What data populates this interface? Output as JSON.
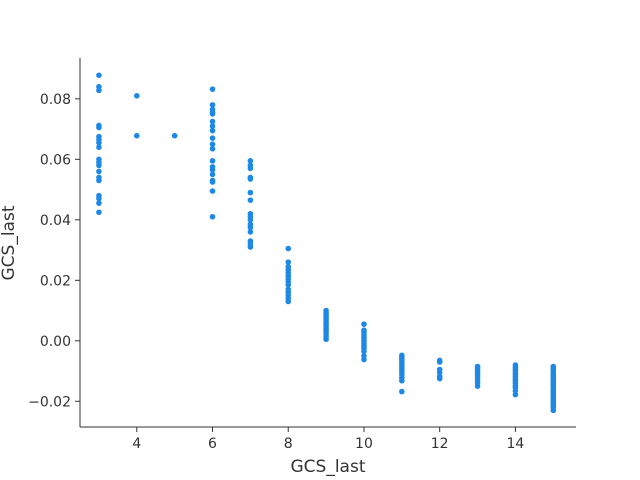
{
  "chart_data": {
    "type": "scatter",
    "xlabel": "GCS_last",
    "ylabel": "GCS_last",
    "xlim": [
      2.5,
      15.6
    ],
    "ylim": [
      -0.0285,
      0.0935
    ],
    "xticks": [
      4,
      6,
      8,
      10,
      12,
      14
    ],
    "xtick_labels": [
      "4",
      "6",
      "8",
      "10",
      "12",
      "14"
    ],
    "yticks": [
      -0.02,
      0.0,
      0.02,
      0.04,
      0.06,
      0.08
    ],
    "ytick_labels": [
      "−0.02",
      "0.00",
      "0.02",
      "0.04",
      "0.06",
      "0.08"
    ],
    "grid": false,
    "point_color": "#1e88e5",
    "axis_color": "#333333",
    "points": [
      [
        3,
        0.0878
      ],
      [
        3,
        0.084
      ],
      [
        3,
        0.0828
      ],
      [
        3,
        0.0712
      ],
      [
        3,
        0.0705
      ],
      [
        3,
        0.0675
      ],
      [
        3,
        0.0665
      ],
      [
        3,
        0.0655
      ],
      [
        3,
        0.064
      ],
      [
        3,
        0.06
      ],
      [
        3,
        0.059
      ],
      [
        3,
        0.058
      ],
      [
        3,
        0.056
      ],
      [
        3,
        0.054
      ],
      [
        3,
        0.053
      ],
      [
        3,
        0.048
      ],
      [
        3,
        0.047
      ],
      [
        3,
        0.0455
      ],
      [
        3,
        0.0425
      ],
      [
        4,
        0.081
      ],
      [
        4,
        0.0678
      ],
      [
        5,
        0.0678
      ],
      [
        6,
        0.0832
      ],
      [
        6,
        0.078
      ],
      [
        6,
        0.0765
      ],
      [
        6,
        0.0755
      ],
      [
        6,
        0.075
      ],
      [
        6,
        0.0725
      ],
      [
        6,
        0.071
      ],
      [
        6,
        0.0695
      ],
      [
        6,
        0.067
      ],
      [
        6,
        0.065
      ],
      [
        6,
        0.0635
      ],
      [
        6,
        0.0595
      ],
      [
        6,
        0.0575
      ],
      [
        6,
        0.0565
      ],
      [
        6,
        0.055
      ],
      [
        6,
        0.053
      ],
      [
        6,
        0.0525
      ],
      [
        6,
        0.0495
      ],
      [
        6,
        0.041
      ],
      [
        7,
        0.0595
      ],
      [
        7,
        0.058
      ],
      [
        7,
        0.057
      ],
      [
        7,
        0.054
      ],
      [
        7,
        0.0535
      ],
      [
        7,
        0.049
      ],
      [
        7,
        0.0465
      ],
      [
        7,
        0.042
      ],
      [
        7,
        0.041
      ],
      [
        7,
        0.04
      ],
      [
        7,
        0.0385
      ],
      [
        7,
        0.0375
      ],
      [
        7,
        0.036
      ],
      [
        7,
        0.033
      ],
      [
        7,
        0.032
      ],
      [
        7,
        0.031
      ],
      [
        8,
        0.0305
      ],
      [
        8,
        0.026
      ],
      [
        8,
        0.0245
      ],
      [
        8,
        0.0235
      ],
      [
        8,
        0.0225
      ],
      [
        8,
        0.0215
      ],
      [
        8,
        0.0205
      ],
      [
        8,
        0.0195
      ],
      [
        8,
        0.0185
      ],
      [
        8,
        0.017
      ],
      [
        8,
        0.016
      ],
      [
        8,
        0.015
      ],
      [
        8,
        0.014
      ],
      [
        8,
        0.013
      ],
      [
        9,
        0.01
      ],
      [
        9,
        0.0092
      ],
      [
        9,
        0.0085
      ],
      [
        9,
        0.0078
      ],
      [
        9,
        0.007
      ],
      [
        9,
        0.0062
      ],
      [
        9,
        0.0055
      ],
      [
        9,
        0.0048
      ],
      [
        9,
        0.004
      ],
      [
        9,
        0.0032
      ],
      [
        9,
        0.0024
      ],
      [
        9,
        0.0015
      ],
      [
        9,
        0.0005
      ],
      [
        10,
        0.0055
      ],
      [
        10,
        0.0035
      ],
      [
        10,
        0.0028
      ],
      [
        10,
        0.002
      ],
      [
        10,
        0.0012
      ],
      [
        10,
        0.0005
      ],
      [
        10,
        -0.0002
      ],
      [
        10,
        -0.001
      ],
      [
        10,
        -0.0018
      ],
      [
        10,
        -0.0025
      ],
      [
        10,
        -0.0035
      ],
      [
        10,
        -0.005
      ],
      [
        10,
        -0.0062
      ],
      [
        11,
        -0.0048
      ],
      [
        11,
        -0.0055
      ],
      [
        11,
        -0.0062
      ],
      [
        11,
        -0.007
      ],
      [
        11,
        -0.0078
      ],
      [
        11,
        -0.0086
      ],
      [
        11,
        -0.0094
      ],
      [
        11,
        -0.0102
      ],
      [
        11,
        -0.0112
      ],
      [
        11,
        -0.0122
      ],
      [
        11,
        -0.0132
      ],
      [
        11,
        -0.0168
      ],
      [
        12,
        -0.0065
      ],
      [
        12,
        -0.007
      ],
      [
        12,
        -0.0095
      ],
      [
        12,
        -0.0105
      ],
      [
        12,
        -0.0118
      ],
      [
        12,
        -0.0125
      ],
      [
        13,
        -0.0085
      ],
      [
        13,
        -0.009
      ],
      [
        13,
        -0.0098
      ],
      [
        13,
        -0.0105
      ],
      [
        13,
        -0.0112
      ],
      [
        13,
        -0.012
      ],
      [
        13,
        -0.013
      ],
      [
        13,
        -0.014
      ],
      [
        13,
        -0.015
      ],
      [
        14,
        -0.008
      ],
      [
        14,
        -0.0088
      ],
      [
        14,
        -0.0095
      ],
      [
        14,
        -0.0102
      ],
      [
        14,
        -0.011
      ],
      [
        14,
        -0.0118
      ],
      [
        14,
        -0.0125
      ],
      [
        14,
        -0.0132
      ],
      [
        14,
        -0.014
      ],
      [
        14,
        -0.0148
      ],
      [
        14,
        -0.0155
      ],
      [
        14,
        -0.0165
      ],
      [
        14,
        -0.0178
      ],
      [
        15,
        -0.0085
      ],
      [
        15,
        -0.0092
      ],
      [
        15,
        -0.01
      ],
      [
        15,
        -0.0108
      ],
      [
        15,
        -0.0115
      ],
      [
        15,
        -0.0122
      ],
      [
        15,
        -0.013
      ],
      [
        15,
        -0.0137
      ],
      [
        15,
        -0.0145
      ],
      [
        15,
        -0.0152
      ],
      [
        15,
        -0.016
      ],
      [
        15,
        -0.0167
      ],
      [
        15,
        -0.0175
      ],
      [
        15,
        -0.0182
      ],
      [
        15,
        -0.019
      ],
      [
        15,
        -0.0197
      ],
      [
        15,
        -0.0205
      ],
      [
        15,
        -0.0212
      ],
      [
        15,
        -0.022
      ],
      [
        15,
        -0.023
      ]
    ]
  }
}
